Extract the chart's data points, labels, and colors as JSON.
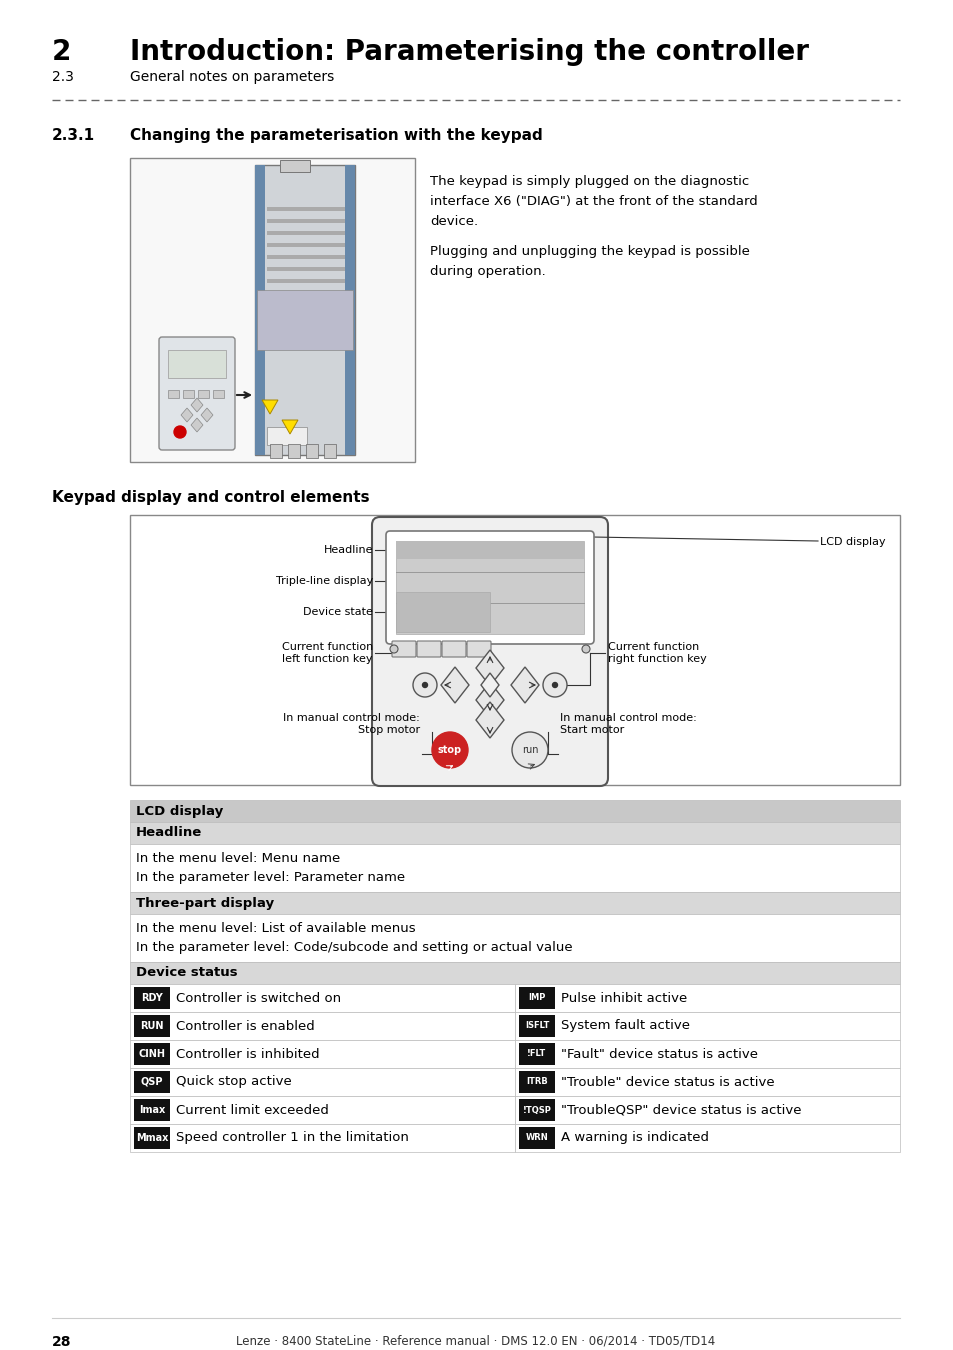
{
  "title_num": "2",
  "title_text": "Introduction: Parameterising the controller",
  "subtitle_num": "2.3",
  "subtitle_text": "General notes on parameters",
  "section_num": "2.3.1",
  "section_title": "Changing the parameterisation with the keypad",
  "keypad_section_title": "Keypad display and control elements",
  "body_text_line1": "The keypad is simply plugged on the diagnostic",
  "body_text_line2": "interface X6 (\"DIAG\") at the front of the standard",
  "body_text_line3": "device.",
  "body_text_line4": "Plugging and unplugging the keypad is possible",
  "body_text_line5": "during operation.",
  "stop_label": "In manual control mode:\nStop motor",
  "run_label": "In manual control mode:\nStart motor",
  "lcd_label": "LCD display",
  "label_headline": "Headline",
  "label_triple": "Triple-line display",
  "label_device": "Device state",
  "label_left_fn": "Current function\nleft function key",
  "label_right_fn": "Current function\nright function key",
  "table_row_lcd": "LCD display",
  "table_row_headline": "Headline",
  "table_row_headline_desc": "In the menu level: Menu name\nIn the parameter level: Parameter name",
  "table_row_three": "Three-part display",
  "table_row_three_desc": "In the menu level: List of available menus\nIn the parameter level: Code/subcode and setting or actual value",
  "table_row_device": "Device status",
  "device_status_rows": [
    {
      "badge": "RDY",
      "left_text": "Controller is switched on",
      "badge2": "IMP",
      "right_text": "Pulse inhibit active"
    },
    {
      "badge": "RUN",
      "left_text": "Controller is enabled",
      "badge2": "ISFLT",
      "right_text": "System fault active"
    },
    {
      "badge": "CINH",
      "left_text": "Controller is inhibited",
      "badge2": "!FLT",
      "right_text": "\"Fault\" device status is active"
    },
    {
      "badge": "QSP",
      "left_text": "Quick stop active",
      "badge2": "ITRB",
      "right_text": "\"Trouble\" device status is active"
    },
    {
      "badge": "Imax",
      "left_text": "Current limit exceeded",
      "badge2": "!TQSP",
      "right_text": "\"TroubleQSP\" device status is active"
    },
    {
      "badge": "Mmax",
      "left_text": "Speed controller 1 in the limitation",
      "badge2": "WRN",
      "right_text": "A warning is indicated"
    }
  ],
  "footer_page": "28",
  "footer_text": "Lenze · 8400 StateLine · Reference manual · DMS 12.0 EN · 06/2014 · TD05/TD14",
  "bg_color": "#ffffff"
}
